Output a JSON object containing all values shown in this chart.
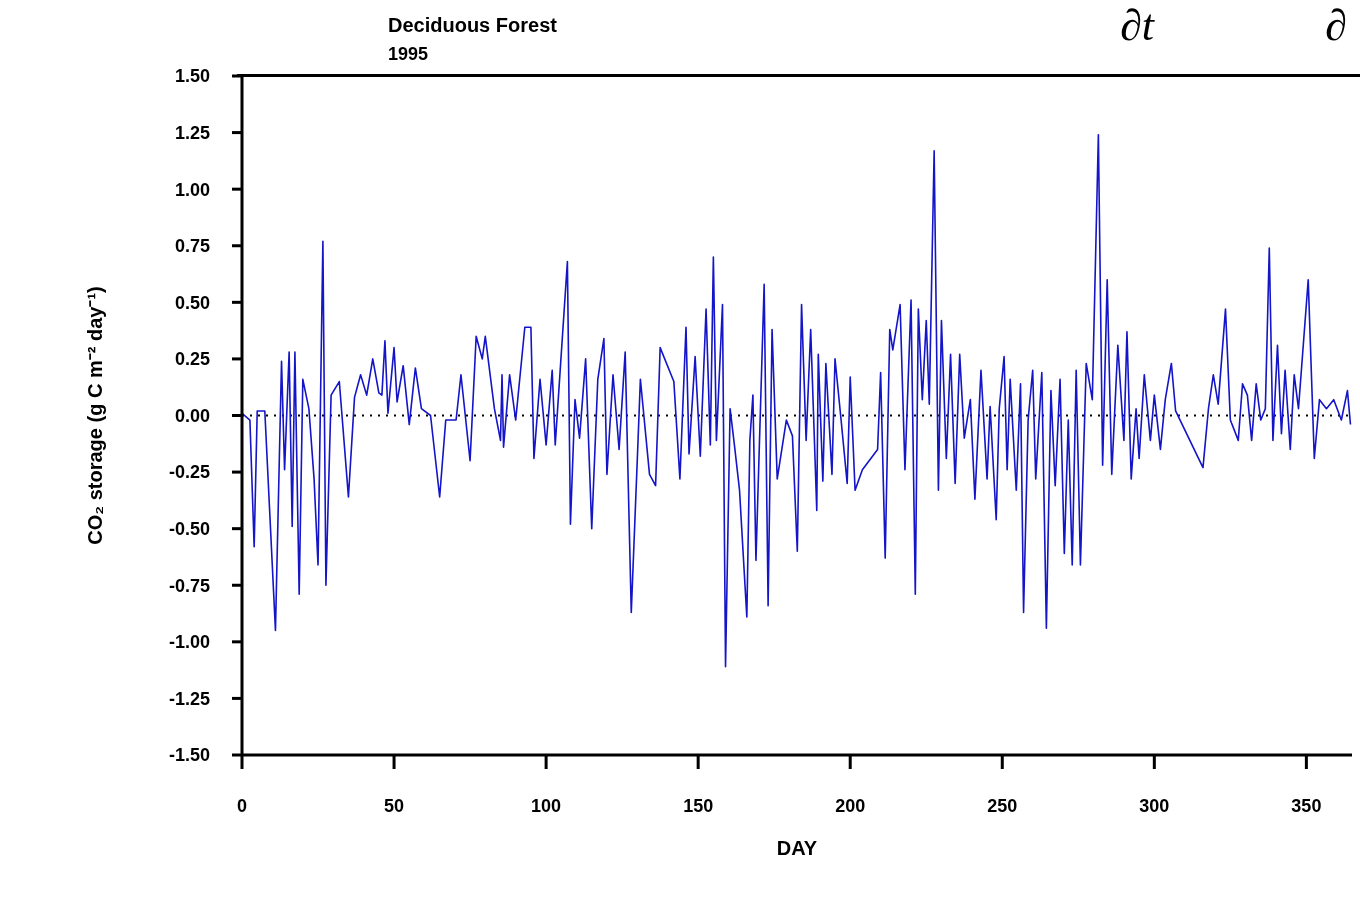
{
  "chart_data": {
    "type": "line",
    "title": "Deciduous Forest",
    "subtitle": "1995",
    "xlabel": "DAY",
    "ylabel": "CO₂ storage (g C m⁻² day⁻¹)",
    "annotations": [
      "∂t",
      "∂"
    ],
    "xlim": [
      0,
      365
    ],
    "xticks": [
      0,
      50,
      100,
      150,
      200,
      250,
      300,
      350
    ],
    "ylim": [
      -1.5,
      1.5
    ],
    "yticks": [
      {
        "value": -1.5,
        "label": "-1.50"
      },
      {
        "value": -1.25,
        "label": "-1.25"
      },
      {
        "value": -1,
        "label": "-1.00"
      },
      {
        "value": -0.75,
        "label": "-0.75"
      },
      {
        "value": -0.5,
        "label": "-0.50"
      },
      {
        "value": -0.25,
        "label": "-0.25"
      },
      {
        "value": 0,
        "label": "0.00"
      },
      {
        "value": 0.25,
        "label": "0.25"
      },
      {
        "value": 0.5,
        "label": "0.50"
      },
      {
        "value": 0.75,
        "label": "0.75"
      },
      {
        "value": 1,
        "label": "1.00"
      },
      {
        "value": 1.25,
        "label": "1.25"
      },
      {
        "value": 1.5,
        "label": "1.50"
      }
    ],
    "grid": false,
    "legend": false,
    "marker": "none",
    "line_style": "solid",
    "ref_lines": [
      {
        "axis": "y",
        "value": 0,
        "color": "#000000",
        "line_style": "dotted"
      }
    ],
    "series": [
      {
        "color": "#1414c8",
        "x": [
          0,
          2.6,
          4,
          5,
          7.5,
          11,
          13,
          14,
          15.5,
          16.5,
          17.4,
          18.8,
          20,
          22,
          23.7,
          25,
          26.6,
          27.6,
          29.3,
          32,
          35,
          37,
          39,
          41,
          43,
          45,
          46,
          47,
          48,
          50,
          51,
          53,
          55,
          57,
          59,
          62,
          65,
          67,
          70.4,
          72,
          75,
          77,
          79,
          80,
          83,
          85,
          85.5,
          86,
          88,
          90,
          93,
          95,
          96,
          98,
          100,
          102,
          103,
          107,
          108,
          109.5,
          111,
          113,
          115,
          117,
          119,
          120,
          122,
          124,
          126,
          128,
          130,
          131,
          134,
          136,
          137.5,
          142,
          144,
          146,
          147,
          149,
          150.7,
          152.6,
          154,
          155,
          156,
          158,
          159,
          160.5,
          162,
          163.6,
          166,
          167,
          168,
          169,
          171.7,
          173,
          174.3,
          176,
          179,
          181,
          182.6,
          184,
          185.5,
          187,
          189,
          189.5,
          191,
          192,
          194,
          195,
          197,
          199,
          200,
          201.6,
          204,
          209,
          210,
          211.5,
          213,
          214,
          216.4,
          218,
          220,
          221.4,
          222.4,
          223.7,
          225,
          226,
          227.6,
          229,
          230,
          231.6,
          233,
          234.5,
          236,
          237.5,
          239.5,
          241,
          243,
          245,
          246,
          248,
          249,
          250.6,
          251.6,
          252.6,
          254.6,
          256,
          257,
          258.5,
          260,
          261,
          263,
          264.5,
          266,
          267.4,
          269,
          270.4,
          271.7,
          273,
          274.3,
          275.7,
          277.6,
          279.6,
          281.6,
          283,
          284.5,
          286,
          288,
          290,
          291,
          292.4,
          294,
          295,
          296.7,
          298.7,
          300,
          302,
          303.6,
          305.6,
          307,
          316,
          317.8,
          319.4,
          321,
          323.4,
          325,
          327.6,
          329,
          330.6,
          332,
          333.5,
          335,
          336.5,
          337.8,
          339,
          340.5,
          341.8,
          343,
          344.7,
          346,
          347.4,
          350.6,
          352.6,
          354.3,
          356.6,
          359,
          361.5,
          363.5,
          364.5
        ],
        "values": [
          0.01,
          -0.02,
          -0.58,
          0.02,
          0.02,
          -0.95,
          0.24,
          -0.24,
          0.28,
          -0.49,
          0.28,
          -0.79,
          0.16,
          0.03,
          -0.28,
          -0.66,
          0.77,
          -0.75,
          0.09,
          0.15,
          -0.36,
          0.08,
          0.18,
          0.09,
          0.25,
          0.1,
          0.09,
          0.33,
          0.01,
          0.3,
          0.06,
          0.22,
          -0.04,
          0.21,
          0.03,
          0,
          -0.36,
          -0.02,
          -0.02,
          0.18,
          -0.2,
          0.35,
          0.25,
          0.35,
          0.03,
          -0.11,
          0.18,
          -0.14,
          0.18,
          -0.02,
          0.39,
          0.39,
          -0.19,
          0.16,
          -0.13,
          0.2,
          -0.13,
          0.68,
          -0.48,
          0.07,
          -0.1,
          0.25,
          -0.5,
          0.16,
          0.34,
          -0.26,
          0.18,
          -0.15,
          0.28,
          -0.87,
          -0.19,
          0.16,
          -0.26,
          -0.31,
          0.3,
          0.15,
          -0.28,
          0.39,
          -0.17,
          0.26,
          -0.18,
          0.47,
          -0.13,
          0.7,
          -0.11,
          0.49,
          -1.11,
          0.03,
          -0.14,
          -0.33,
          -0.89,
          -0.11,
          0.09,
          -0.64,
          0.58,
          -0.84,
          0.38,
          -0.28,
          -0.02,
          -0.09,
          -0.6,
          0.49,
          -0.11,
          0.38,
          -0.42,
          0.27,
          -0.29,
          0.23,
          -0.26,
          0.25,
          -0.02,
          -0.3,
          0.17,
          -0.33,
          -0.24,
          -0.15,
          0.19,
          -0.63,
          0.38,
          0.29,
          0.49,
          -0.24,
          0.51,
          -0.79,
          0.47,
          0.07,
          0.42,
          0.05,
          1.17,
          -0.33,
          0.42,
          -0.19,
          0.27,
          -0.3,
          0.27,
          -0.1,
          0.07,
          -0.37,
          0.2,
          -0.28,
          0.04,
          -0.46,
          0.03,
          0.26,
          -0.24,
          0.16,
          -0.33,
          0.14,
          -0.87,
          -0.02,
          0.2,
          -0.28,
          0.19,
          -0.94,
          0.11,
          -0.31,
          0.16,
          -0.61,
          -0.02,
          -0.66,
          0.2,
          -0.66,
          0.23,
          0.07,
          1.24,
          -0.22,
          0.6,
          -0.26,
          0.31,
          -0.11,
          0.37,
          -0.28,
          0.03,
          -0.19,
          0.18,
          -0.11,
          0.09,
          -0.15,
          0.07,
          0.23,
          0.02,
          -0.23,
          0.03,
          0.18,
          0.05,
          0.47,
          -0.02,
          -0.11,
          0.14,
          0.09,
          -0.11,
          0.14,
          -0.02,
          0.03,
          0.74,
          -0.11,
          0.31,
          -0.08,
          0.2,
          -0.15,
          0.18,
          0.03,
          0.6,
          -0.19,
          0.07,
          0.03,
          0.07,
          -0.02,
          0.11,
          -0.04
        ]
      }
    ]
  }
}
